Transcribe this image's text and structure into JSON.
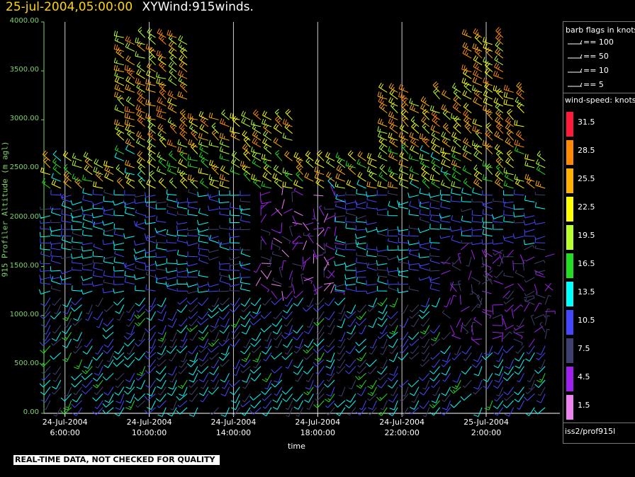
{
  "title": {
    "timestamp": "25-jul-2004,05:00:00",
    "name": "XYWind:915winds."
  },
  "footer_note": "REAL-TIME DATA, NOT CHECKED FOR QUALITY",
  "source_label": "iss2/prof915l",
  "legend": {
    "flags_header": "barb flags in knots",
    "flags": [
      "== 100",
      "== 50",
      "== 10",
      "== 5"
    ],
    "speed_header": "wind-speed: knots",
    "speed_bins": [
      {
        "label": "31.5",
        "color": "#ff1a3c"
      },
      {
        "label": "28.5",
        "color": "#ff8a00"
      },
      {
        "label": "25.5",
        "color": "#ffb000"
      },
      {
        "label": "22.5",
        "color": "#ffff00"
      },
      {
        "label": "19.5",
        "color": "#b8ff2e"
      },
      {
        "label": "16.5",
        "color": "#22dd22"
      },
      {
        "label": "13.5",
        "color": "#00ffff"
      },
      {
        "label": "10.5",
        "color": "#4646ff"
      },
      {
        "label": "7.5",
        "color": "#404070"
      },
      {
        "label": "4.5",
        "color": "#a020f0"
      },
      {
        "label": "1.5",
        "color": "#ee82ee"
      }
    ]
  },
  "chart_data": {
    "type": "scatter",
    "title": "XYWind:915winds.",
    "xlabel": "time",
    "ylabel": "915 Profiler Altitude (m agl)",
    "ylim": [
      0,
      4000
    ],
    "y_ticks": [
      "4000.00",
      "3500.00",
      "3000.00",
      "2500.00",
      "2000.00",
      "1500.00",
      "1000.00",
      "500.00",
      "0.00"
    ],
    "x_ticks": [
      {
        "date": "24-Jul-2004",
        "time": "6:00:00"
      },
      {
        "date": "24-Jul-2004",
        "time": "10:00:00"
      },
      {
        "date": "24-Jul-2004",
        "time": "14:00:00"
      },
      {
        "date": "24-Jul-2004",
        "time": "18:00:00"
      },
      {
        "date": "24-Jul-2004",
        "time": "22:00:00"
      },
      {
        "date": "25-Jul-2004",
        "time": "2:00:00"
      }
    ],
    "x_hours_range": [
      5,
      29.5
    ],
    "grid": "vertical",
    "marks": "wind barbs colored by wind speed (knots)"
  }
}
